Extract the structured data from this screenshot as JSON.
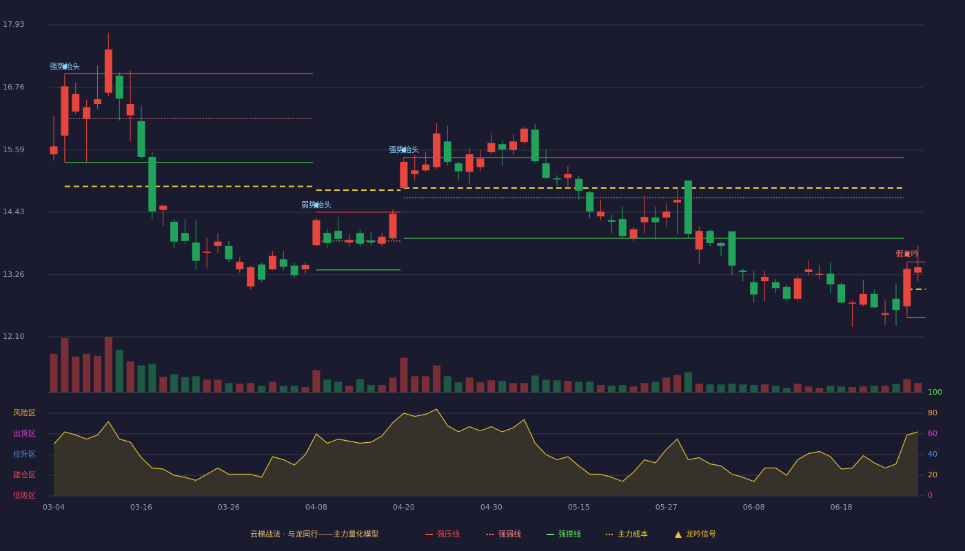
{
  "chart_data": [
    {
      "type": "candlestick",
      "ylim": [
        12.1,
        17.93
      ],
      "yticks": [
        17.93,
        16.76,
        15.59,
        14.43,
        13.26,
        {
          "value": 12.1,
          "label": "12.10"
        }
      ],
      "grid": true,
      "up_color": "#e8453c",
      "down_color": "#21a35c",
      "open": [
        15.51,
        15.86,
        16.31,
        16.17,
        16.45,
        16.66,
        16.98,
        16.24,
        16.13,
        15.46,
        14.47,
        14.25,
        14.04,
        13.86,
        13.67,
        13.8,
        13.8,
        13.36,
        13.04,
        13.45,
        13.36,
        13.55,
        13.43,
        13.36,
        13.81,
        14.04,
        14.08,
        13.86,
        14.04,
        13.9,
        13.84,
        13.94,
        14.88,
        15.14,
        15.21,
        15.27,
        15.75,
        15.34,
        15.18,
        15.27,
        15.55,
        15.7,
        15.59,
        15.74,
        15.97,
        15.34,
        15.06,
        15.07,
        15.05,
        14.8,
        14.35,
        14.28,
        14.3,
        13.94,
        14.24,
        14.33,
        14.33,
        14.61,
        15.02,
        13.73,
        14.08,
        13.85,
        14.07,
        13.34,
        13.12,
        13.14,
        13.12,
        13.03,
        12.81,
        13.31,
        13.26,
        13.28,
        13.08,
        12.72,
        12.7,
        12.9,
        12.51,
        12.81,
        12.67,
        13.3
      ],
      "high": [
        16.23,
        16.87,
        16.85,
        16.53,
        17.17,
        17.78,
        17.04,
        17.07,
        16.42,
        15.56,
        14.57,
        14.3,
        14.3,
        14.28,
        13.95,
        14.04,
        13.89,
        13.59,
        13.43,
        13.48,
        13.7,
        13.7,
        13.48,
        13.5,
        14.33,
        14.12,
        14.34,
        14.02,
        14.11,
        14.06,
        14.04,
        14.48,
        15.46,
        15.5,
        15.56,
        16.09,
        16.04,
        15.37,
        15.63,
        15.59,
        15.91,
        15.76,
        15.88,
        16.03,
        16.08,
        15.6,
        15.12,
        15.29,
        15.11,
        14.83,
        14.66,
        14.38,
        14.53,
        14.15,
        14.75,
        14.53,
        14.6,
        14.91,
        15.02,
        14.17,
        14.11,
        13.88,
        14.07,
        13.37,
        13.34,
        13.34,
        13.18,
        13.07,
        13.25,
        13.53,
        13.44,
        13.49,
        13.12,
        12.78,
        13.17,
        12.99,
        12.8,
        13.09,
        13.44,
        13.81
      ],
      "low": [
        15.39,
        15.4,
        16.27,
        15.37,
        16.36,
        16.59,
        16.14,
        15.75,
        15.43,
        14.3,
        14.17,
        13.76,
        13.82,
        13.35,
        13.38,
        13.67,
        13.5,
        13.3,
        12.99,
        13.12,
        13.34,
        13.34,
        13.2,
        13.28,
        13.79,
        13.76,
        13.89,
        13.79,
        13.79,
        13.81,
        13.79,
        13.91,
        14.85,
        15.02,
        15.18,
        15.24,
        15.3,
        15.02,
        14.94,
        15.2,
        15.51,
        15.3,
        15.5,
        15.69,
        15.36,
        15.05,
        14.92,
        14.86,
        14.66,
        14.31,
        14.28,
        14.04,
        13.95,
        13.89,
        14.04,
        13.91,
        14.15,
        14.02,
        13.95,
        13.46,
        13.79,
        13.61,
        13.25,
        13.14,
        12.73,
        12.77,
        12.92,
        12.76,
        12.76,
        13.25,
        13.18,
        12.92,
        12.73,
        12.28,
        12.67,
        12.63,
        12.32,
        12.31,
        12.63,
        13.14
      ],
      "close": [
        15.66,
        16.78,
        16.64,
        16.39,
        16.54,
        17.47,
        16.55,
        16.45,
        15.46,
        14.44,
        14.55,
        13.88,
        13.89,
        13.52,
        13.69,
        13.88,
        13.55,
        13.5,
        13.4,
        13.17,
        13.61,
        13.41,
        13.25,
        13.44,
        14.28,
        13.85,
        13.93,
        13.91,
        13.84,
        13.86,
        13.97,
        14.4,
        15.37,
        15.21,
        15.32,
        15.9,
        15.37,
        15.19,
        15.51,
        15.43,
        15.72,
        15.6,
        15.75,
        15.99,
        15.38,
        15.07,
        15.04,
        15.14,
        14.83,
        14.44,
        14.44,
        14.25,
        13.98,
        14.11,
        14.34,
        14.24,
        14.44,
        14.66,
        14.02,
        14.08,
        13.85,
        13.8,
        13.43,
        13.31,
        12.89,
        13.22,
        13.01,
        12.81,
        13.19,
        13.36,
        13.28,
        13.08,
        12.74,
        12.74,
        12.9,
        12.65,
        12.54,
        12.6,
        13.37,
        13.4
      ],
      "lines": [
        {
          "name": "强压线",
          "color": "#e84a4a",
          "style": "solid",
          "segments": [
            {
              "from": 1,
              "to": 23,
              "value": 17.02
            },
            {
              "from": 24,
              "to": 31,
              "value": 14.43
            },
            {
              "from": 32,
              "to": 77,
              "value": 15.45
            },
            {
              "from": 78,
              "to": 79,
              "value": 13.5
            }
          ]
        },
        {
          "name": "强弱线",
          "color": "#f08a8a",
          "style": "dotted",
          "segments": [
            {
              "from": 1,
              "to": 23,
              "value": 16.18
            },
            {
              "from": 24,
              "to": 31,
              "value": 13.89
            },
            {
              "from": 32,
              "to": 77,
              "value": 14.7
            }
          ]
        },
        {
          "name": "强撑线",
          "color": "#5ce65c",
          "style": "solid",
          "segments": [
            {
              "from": 1,
              "to": 23,
              "value": 15.36
            },
            {
              "from": 24,
              "to": 31,
              "value": 13.35
            },
            {
              "from": 32,
              "to": 77,
              "value": 13.94
            },
            {
              "from": 78,
              "to": 79,
              "value": 12.46
            }
          ]
        },
        {
          "name": "主力成本",
          "color": "#f0d040",
          "style": "dashed",
          "segments": [
            {
              "from": 1,
              "to": 23,
              "value": 14.91
            },
            {
              "from": 24,
              "to": 31,
              "value": 14.84
            },
            {
              "from": 32,
              "to": 77,
              "value": 14.88
            },
            {
              "from": 78,
              "to": 79,
              "value": 12.99
            }
          ]
        }
      ],
      "signal": {
        "name": "龙吟信号",
        "color": "#f0c030"
      },
      "annotations": [
        {
          "text": "强势抬头",
          "color": "#8fd6ff"
        },
        {
          "text": "弱势抬头",
          "color": "#8fd6ff"
        },
        {
          "text": "强势抬头",
          "color": "#8fd6ff"
        },
        {
          "text": "假龙吟",
          "color": "#ff6a6a"
        }
      ],
      "legend_title": "云梯战法 · 与龙同行——主力量化模型",
      "legend_title_color": "#e8c070"
    },
    {
      "type": "volume",
      "ylim": [
        0,
        82
      ],
      "up_color": "#7a2f37",
      "down_color": "#1f5a45",
      "values": [
        57,
        80,
        53,
        57,
        54,
        82,
        63,
        46,
        40,
        42,
        23,
        27,
        23,
        24,
        19,
        19,
        14,
        13,
        14,
        10,
        16,
        10,
        10,
        8,
        33,
        19,
        16,
        10,
        20,
        11,
        11,
        22,
        51,
        24,
        24,
        40,
        24,
        15,
        22,
        15,
        18,
        17,
        14,
        14,
        25,
        19,
        18,
        17,
        16,
        16,
        11,
        10,
        11,
        9,
        14,
        16,
        22,
        26,
        30,
        13,
        12,
        12,
        13,
        12,
        11,
        12,
        10,
        7,
        13,
        9,
        7,
        10,
        9,
        8,
        9,
        10,
        10,
        13,
        20,
        14
      ]
    },
    {
      "type": "line",
      "ylim": [
        0,
        100
      ],
      "yticks": [
        0,
        20,
        40,
        60,
        80,
        100
      ],
      "ytick_colors": [
        "#e84a4a",
        "#e8a33c",
        "#4a90e8",
        "#e040e0",
        "#e8a33c",
        "#5ce65c"
      ],
      "color": "#e5c030",
      "fill": "#36322b",
      "grid": true,
      "zones": [
        {
          "value": 80,
          "label": "风险区",
          "color": "#e8a33c"
        },
        {
          "value": 60,
          "label": "出货区",
          "color": "#e040e0"
        },
        {
          "value": 40,
          "label": "拉升区",
          "color": "#4a90e8"
        },
        {
          "value": 20,
          "label": "建仓区",
          "color": "#e84a4a"
        },
        {
          "value": 0,
          "label": "低吸区",
          "color": "#e84a6a"
        }
      ],
      "categories": [
        "03-04",
        null,
        null,
        null,
        null,
        null,
        null,
        null,
        "03-16",
        null,
        null,
        null,
        null,
        null,
        null,
        null,
        "03-26",
        null,
        null,
        null,
        null,
        null,
        null,
        null,
        "04-08",
        null,
        null,
        null,
        null,
        null,
        null,
        null,
        "04-20",
        null,
        null,
        null,
        null,
        null,
        null,
        null,
        "04-30",
        null,
        null,
        null,
        null,
        null,
        null,
        null,
        "05-15",
        null,
        null,
        null,
        null,
        null,
        null,
        null,
        "05-27",
        null,
        null,
        null,
        null,
        null,
        null,
        null,
        "06-08",
        null,
        null,
        null,
        null,
        null,
        null,
        null,
        "06-18",
        null,
        null,
        null,
        null,
        null,
        null,
        null
      ],
      "values": [
        50,
        62,
        59,
        55,
        59,
        72,
        55,
        52,
        37,
        27,
        26,
        20,
        18,
        15,
        21,
        27,
        21,
        21,
        21,
        18,
        38,
        35,
        30,
        40,
        60,
        51,
        55,
        53,
        51,
        52,
        58,
        71,
        80,
        77,
        79,
        84,
        68,
        62,
        67,
        63,
        67,
        62,
        66,
        74,
        51,
        40,
        35,
        38,
        29,
        21,
        21,
        18,
        14,
        23,
        35,
        32,
        45,
        55,
        35,
        37,
        31,
        29,
        21,
        18,
        14,
        27,
        27,
        20,
        35,
        41,
        43,
        38,
        26,
        27,
        39,
        32,
        27,
        31,
        59,
        62
      ]
    }
  ]
}
